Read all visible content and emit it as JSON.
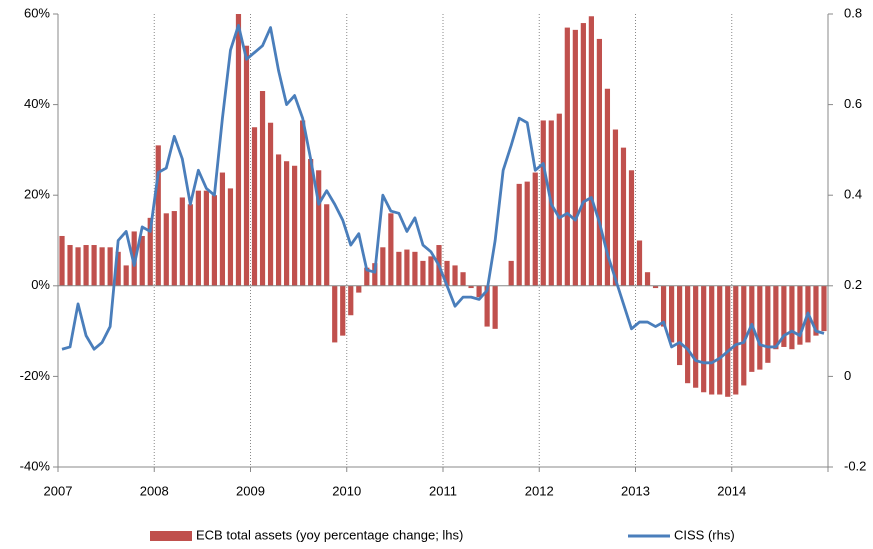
{
  "chart_data": {
    "type": "bar_line",
    "categories": [
      "2007",
      null,
      null,
      null,
      null,
      null,
      null,
      null,
      null,
      null,
      null,
      null,
      "2008",
      null,
      null,
      null,
      null,
      null,
      null,
      null,
      null,
      null,
      null,
      null,
      "2009",
      null,
      null,
      null,
      null,
      null,
      null,
      null,
      null,
      null,
      null,
      null,
      "2010",
      null,
      null,
      null,
      null,
      null,
      null,
      null,
      null,
      null,
      null,
      null,
      "2011",
      null,
      null,
      null,
      null,
      null,
      null,
      null,
      null,
      null,
      null,
      null,
      "2012",
      null,
      null,
      null,
      null,
      null,
      null,
      null,
      null,
      null,
      null,
      null,
      "2013",
      null,
      null,
      null,
      null,
      null,
      null,
      null,
      null,
      null,
      null,
      null,
      "2014",
      null,
      null,
      null,
      null,
      null,
      null,
      null,
      null,
      null,
      null,
      null
    ],
    "series": [
      {
        "name": "ECB total assets (yoy percentage change; lhs)",
        "type": "bar",
        "color": "#c0504d",
        "values": [
          11,
          9,
          8.5,
          9,
          9,
          8.5,
          8.5,
          7.5,
          4.5,
          12,
          11,
          15,
          31,
          16,
          16.5,
          19.5,
          18,
          21,
          21,
          20,
          25,
          21.5,
          60,
          53,
          35,
          43,
          36,
          29,
          27.5,
          26.5,
          36.5,
          28,
          25.5,
          18,
          -12.5,
          -11,
          -6.5,
          -1.5,
          4,
          5,
          8.5,
          16,
          7.5,
          8,
          7.5,
          5.5,
          6.5,
          9,
          5.5,
          4.5,
          3,
          -0.5,
          -2.5,
          -9,
          -9.5,
          0,
          5.5,
          22.5,
          23,
          25,
          36.5,
          36.5,
          38,
          57,
          56.5,
          58,
          59.5,
          54.5,
          43.5,
          34.5,
          30.5,
          25.5,
          10,
          3,
          -0.5,
          -9,
          -12.5,
          -17.5,
          -21.5,
          -22.5,
          -23.5,
          -24,
          -24,
          -24.5,
          -24,
          -22,
          -19,
          -18.5,
          -17,
          -14,
          -13.5,
          -14,
          -13,
          -12.5,
          -11,
          -10
        ]
      },
      {
        "name": "CISS (rhs)",
        "type": "line",
        "axis": "y2",
        "color": "#4a7ebb",
        "values": [
          0.06,
          0.065,
          0.16,
          0.09,
          0.06,
          0.075,
          0.11,
          0.3,
          0.32,
          0.245,
          0.33,
          0.32,
          0.45,
          0.46,
          0.53,
          0.48,
          0.38,
          0.455,
          0.415,
          0.4,
          0.57,
          0.72,
          0.775,
          0.7,
          0.715,
          0.73,
          0.77,
          0.675,
          0.6,
          0.62,
          0.57,
          0.48,
          0.38,
          0.41,
          0.38,
          0.345,
          0.29,
          0.315,
          0.235,
          0.23,
          0.4,
          0.365,
          0.36,
          0.32,
          0.35,
          0.29,
          0.275,
          0.245,
          0.2,
          0.155,
          0.175,
          0.175,
          0.17,
          0.19,
          0.3,
          0.455,
          0.51,
          0.57,
          0.56,
          0.455,
          0.47,
          0.38,
          0.35,
          0.36,
          0.345,
          0.385,
          0.395,
          0.34,
          0.27,
          0.215,
          0.16,
          0.105,
          0.12,
          0.12,
          0.11,
          0.12,
          0.065,
          0.075,
          0.06,
          0.035,
          0.03,
          0.03,
          0.04,
          0.055,
          0.07,
          0.075,
          0.115,
          0.07,
          0.065,
          0.065,
          0.09,
          0.1,
          0.09,
          0.14,
          0.1,
          0.095
        ]
      }
    ],
    "ylim": [
      -40,
      60
    ],
    "yticks": [
      {
        "value": -40,
        "label": "-40%"
      },
      {
        "value": -20,
        "label": "-20%"
      },
      {
        "value": 0,
        "label": "0%"
      },
      {
        "value": 20,
        "label": "20%"
      },
      {
        "value": 40,
        "label": "40%"
      },
      {
        "value": 60,
        "label": "60%"
      }
    ],
    "y2lim": [
      -0.2,
      0.8
    ],
    "y2ticks": [
      -0.2,
      0,
      0.2,
      0.4,
      0.6,
      0.8
    ],
    "grid": true,
    "legend": "bottom"
  }
}
